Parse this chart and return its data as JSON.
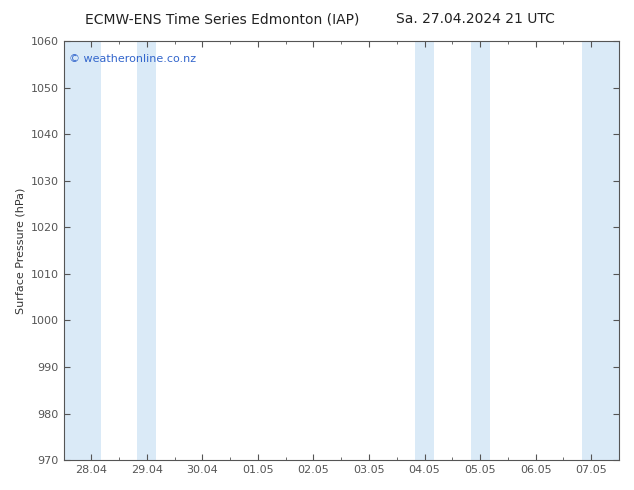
{
  "title_left": "ECMW-ENS Time Series Edmonton (IAP)",
  "title_right": "Sa. 27.04.2024 21 UTC",
  "ylabel": "Surface Pressure (hPa)",
  "ylim": [
    970,
    1060
  ],
  "yticks": [
    970,
    980,
    990,
    1000,
    1010,
    1020,
    1030,
    1040,
    1050,
    1060
  ],
  "xtick_labels": [
    "28.04",
    "29.04",
    "30.04",
    "01.05",
    "02.05",
    "03.05",
    "04.05",
    "05.05",
    "06.05",
    "07.05"
  ],
  "xtick_positions": [
    0,
    1,
    2,
    3,
    4,
    5,
    6,
    7,
    8,
    9
  ],
  "xlim": [
    0,
    9
  ],
  "shaded_bands": [
    {
      "xmin": -0.5,
      "xmax": 0.17,
      "color": "#daeaf7"
    },
    {
      "xmin": 0.83,
      "xmax": 1.17,
      "color": "#daeaf7"
    },
    {
      "xmin": 5.83,
      "xmax": 6.17,
      "color": "#daeaf7"
    },
    {
      "xmin": 6.83,
      "xmax": 7.17,
      "color": "#daeaf7"
    },
    {
      "xmin": 8.83,
      "xmax": 9.5,
      "color": "#daeaf7"
    }
  ],
  "watermark_text": "© weatheronline.co.nz",
  "watermark_color": "#3366cc",
  "watermark_fontsize": 8,
  "background_color": "#ffffff",
  "plot_bg_color": "#ffffff",
  "title_fontsize": 10,
  "ylabel_fontsize": 8,
  "tick_fontsize": 8,
  "spine_color": "#555555",
  "tick_color": "#555555"
}
